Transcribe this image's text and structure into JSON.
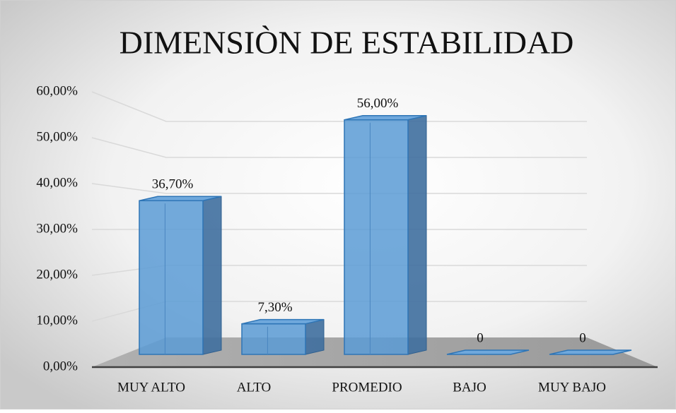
{
  "chart_data": {
    "type": "bar",
    "title": "DIMENSIÒN DE ESTABILIDAD",
    "categories": [
      "MUY ALTO",
      "ALTO",
      "PROMEDIO",
      "BAJO",
      "MUY BAJO"
    ],
    "values": [
      36.7,
      7.3,
      56,
      0,
      0
    ],
    "value_labels": [
      "36,70%",
      "7,30%",
      "56,00%",
      "0",
      "0"
    ],
    "color": "#5b9bd5",
    "ylim": [
      0,
      60
    ],
    "yticks": [
      {
        "value": 0,
        "label": "0,00%"
      },
      {
        "value": 10,
        "label": "10,00%"
      },
      {
        "value": 20,
        "label": "20,00%"
      },
      {
        "value": 30,
        "label": "30,00%"
      },
      {
        "value": 40,
        "label": "40,00%"
      },
      {
        "value": 50,
        "label": "50,00%"
      },
      {
        "value": 60,
        "label": "60,00%"
      }
    ],
    "grid": true
  }
}
